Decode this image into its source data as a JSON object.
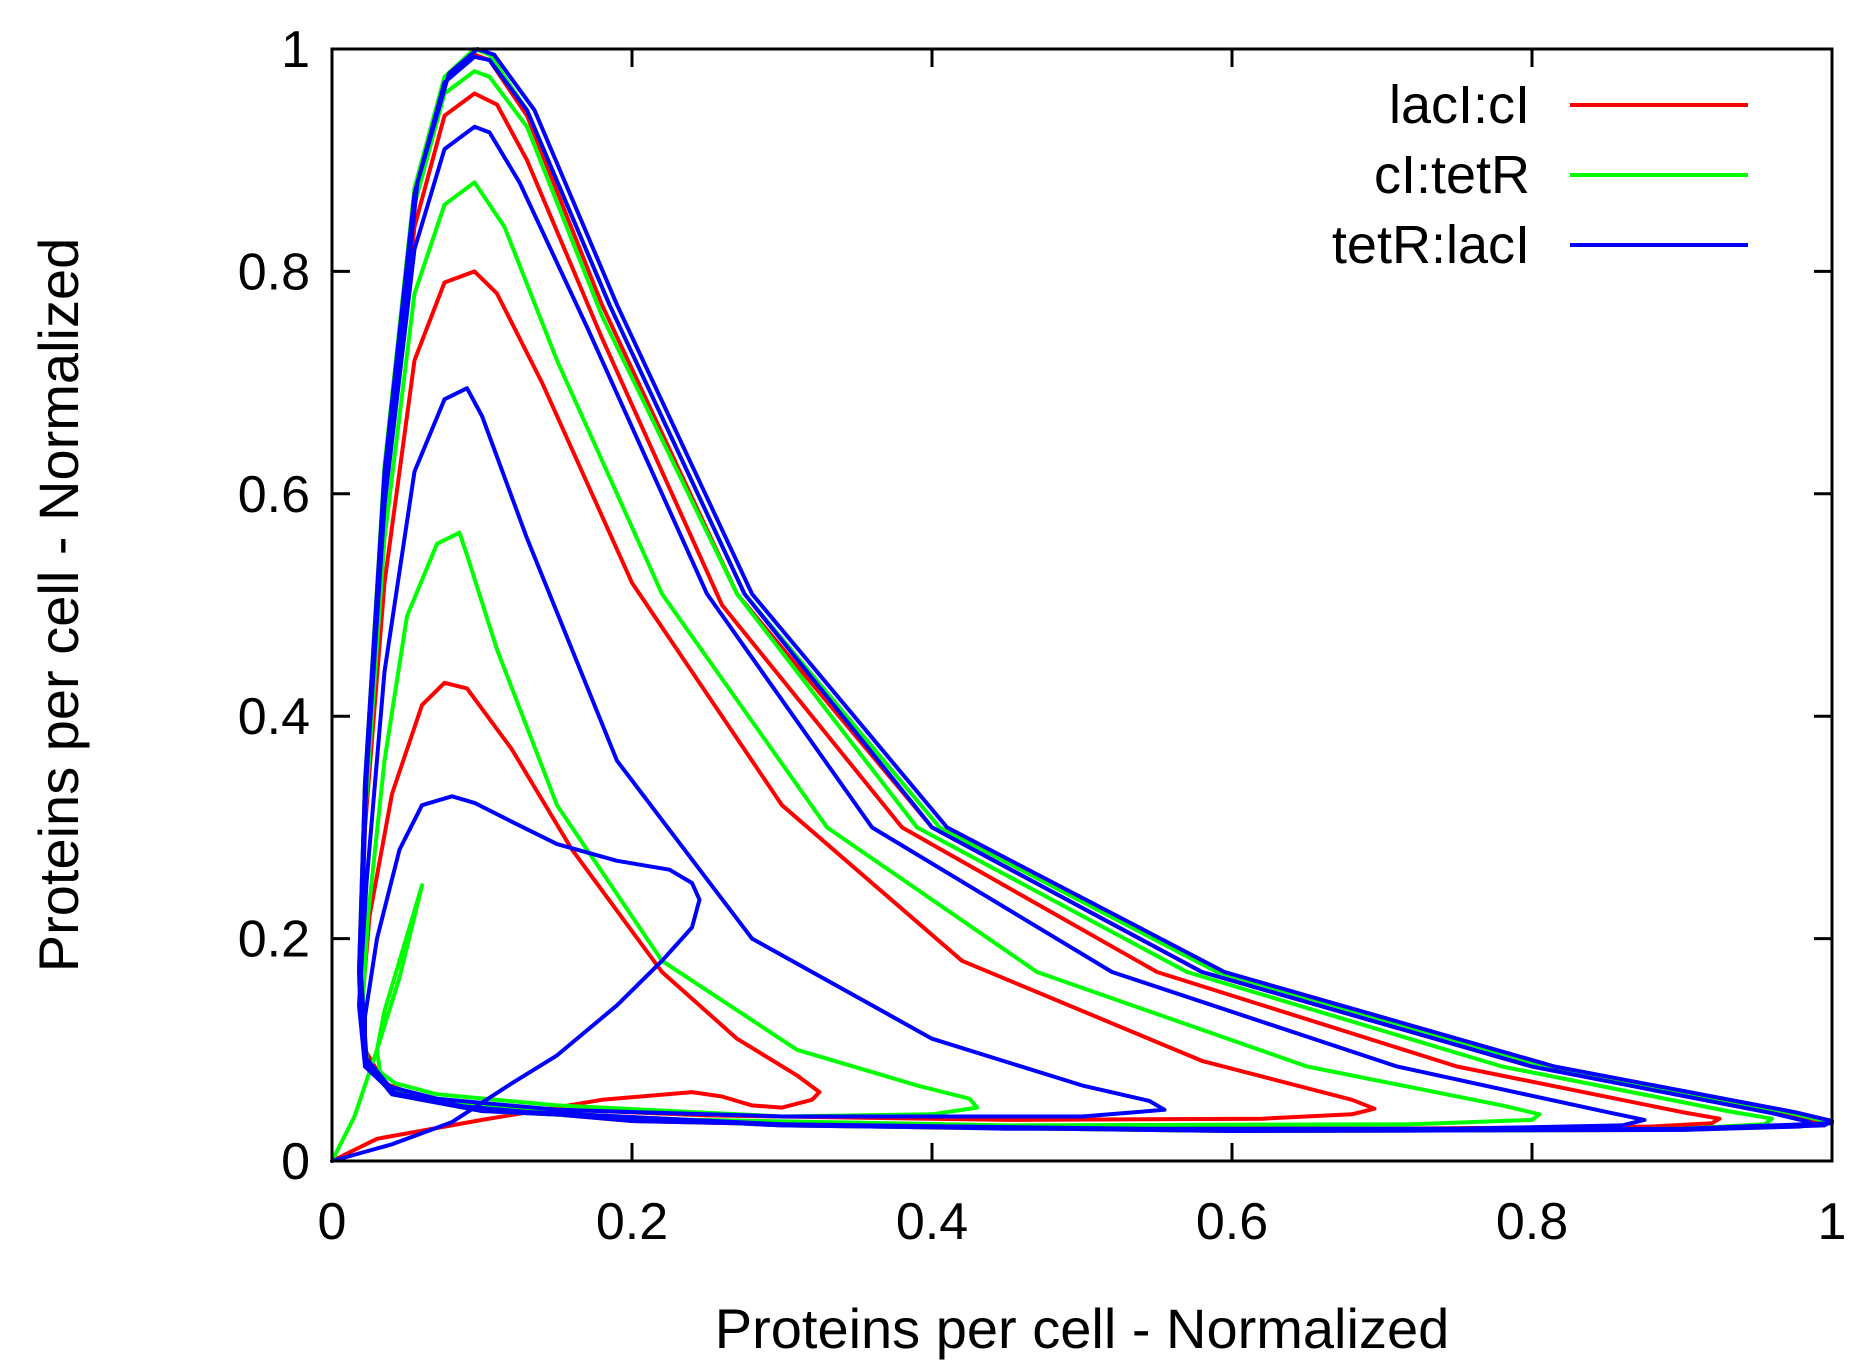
{
  "chart_data": {
    "type": "line",
    "title": "",
    "xlabel": "Proteins per cell - Normalized",
    "ylabel": "Proteins per cell - Normalized",
    "xlim": [
      0,
      1
    ],
    "ylim": [
      0,
      1
    ],
    "xticks": [
      "0",
      "0.2",
      "0.4",
      "0.6",
      "0.8",
      "1"
    ],
    "yticks": [
      "0",
      "0.2",
      "0.4",
      "0.6",
      "0.8",
      "1"
    ],
    "grid": false,
    "legend_position": "top-right",
    "colors": {
      "lacI:cI": "#ff0000",
      "cI:tetR": "#00ff00",
      "tetR:lacI": "#0000ff"
    },
    "series": [
      {
        "name": "lacI:cI",
        "color": "#ff0000",
        "points": [
          [
            0.0,
            0.0
          ],
          [
            0.03,
            0.02
          ],
          [
            0.1,
            0.037
          ],
          [
            0.18,
            0.055
          ],
          [
            0.24,
            0.062
          ],
          [
            0.26,
            0.058
          ],
          [
            0.28,
            0.05
          ],
          [
            0.3,
            0.048
          ],
          [
            0.32,
            0.055
          ],
          [
            0.325,
            0.062
          ],
          [
            0.31,
            0.077
          ],
          [
            0.27,
            0.11
          ],
          [
            0.22,
            0.17
          ],
          [
            0.16,
            0.28
          ],
          [
            0.12,
            0.37
          ],
          [
            0.09,
            0.425
          ],
          [
            0.075,
            0.43
          ],
          [
            0.06,
            0.41
          ],
          [
            0.04,
            0.33
          ],
          [
            0.025,
            0.22
          ],
          [
            0.02,
            0.14
          ],
          [
            0.022,
            0.1
          ],
          [
            0.035,
            0.07
          ],
          [
            0.06,
            0.057
          ],
          [
            0.12,
            0.048
          ],
          [
            0.25,
            0.041
          ],
          [
            0.45,
            0.037
          ],
          [
            0.62,
            0.038
          ],
          [
            0.68,
            0.042
          ],
          [
            0.695,
            0.047
          ],
          [
            0.68,
            0.055
          ],
          [
            0.58,
            0.09
          ],
          [
            0.42,
            0.18
          ],
          [
            0.3,
            0.32
          ],
          [
            0.2,
            0.52
          ],
          [
            0.14,
            0.7
          ],
          [
            0.11,
            0.78
          ],
          [
            0.095,
            0.8
          ],
          [
            0.075,
            0.79
          ],
          [
            0.055,
            0.72
          ],
          [
            0.035,
            0.52
          ],
          [
            0.022,
            0.3
          ],
          [
            0.018,
            0.16
          ],
          [
            0.022,
            0.09
          ],
          [
            0.04,
            0.062
          ],
          [
            0.08,
            0.05
          ],
          [
            0.2,
            0.036
          ],
          [
            0.4,
            0.03
          ],
          [
            0.7,
            0.029
          ],
          [
            0.88,
            0.031
          ],
          [
            0.92,
            0.034
          ],
          [
            0.925,
            0.038
          ],
          [
            0.9,
            0.044
          ],
          [
            0.75,
            0.085
          ],
          [
            0.55,
            0.17
          ],
          [
            0.38,
            0.3
          ],
          [
            0.26,
            0.5
          ],
          [
            0.18,
            0.74
          ],
          [
            0.13,
            0.9
          ],
          [
            0.11,
            0.95
          ],
          [
            0.095,
            0.96
          ],
          [
            0.075,
            0.94
          ],
          [
            0.055,
            0.84
          ],
          [
            0.035,
            0.6
          ],
          [
            0.022,
            0.33
          ],
          [
            0.018,
            0.17
          ],
          [
            0.022,
            0.09
          ],
          [
            0.04,
            0.06
          ],
          [
            0.1,
            0.045
          ],
          [
            0.3,
            0.032
          ],
          [
            0.6,
            0.027
          ],
          [
            0.9,
            0.028
          ],
          [
            0.985,
            0.032
          ],
          [
            0.99,
            0.036
          ],
          [
            0.96,
            0.044
          ],
          [
            0.8,
            0.085
          ],
          [
            0.58,
            0.17
          ],
          [
            0.4,
            0.3
          ],
          [
            0.27,
            0.51
          ],
          [
            0.18,
            0.77
          ],
          [
            0.13,
            0.94
          ],
          [
            0.105,
            0.99
          ],
          [
            0.095,
            0.995
          ],
          [
            0.075,
            0.97
          ],
          [
            0.055,
            0.87
          ],
          [
            0.035,
            0.62
          ],
          [
            0.022,
            0.34
          ],
          [
            0.018,
            0.17
          ],
          [
            0.022,
            0.09
          ],
          [
            0.04,
            0.06
          ],
          [
            0.1,
            0.045
          ],
          [
            0.3,
            0.032
          ],
          [
            0.6,
            0.027
          ],
          [
            0.9,
            0.028
          ]
        ]
      },
      {
        "name": "cI:tetR",
        "color": "#00ff00",
        "points": [
          [
            0.0,
            0.0
          ],
          [
            0.015,
            0.04
          ],
          [
            0.03,
            0.1
          ],
          [
            0.045,
            0.165
          ],
          [
            0.055,
            0.22
          ],
          [
            0.06,
            0.248
          ],
          [
            0.055,
            0.225
          ],
          [
            0.045,
            0.18
          ],
          [
            0.035,
            0.135
          ],
          [
            0.03,
            0.1
          ],
          [
            0.032,
            0.08
          ],
          [
            0.042,
            0.07
          ],
          [
            0.07,
            0.06
          ],
          [
            0.15,
            0.05
          ],
          [
            0.3,
            0.04
          ],
          [
            0.4,
            0.042
          ],
          [
            0.43,
            0.048
          ],
          [
            0.425,
            0.056
          ],
          [
            0.39,
            0.068
          ],
          [
            0.31,
            0.1
          ],
          [
            0.22,
            0.18
          ],
          [
            0.15,
            0.32
          ],
          [
            0.11,
            0.46
          ],
          [
            0.09,
            0.545
          ],
          [
            0.085,
            0.565
          ],
          [
            0.07,
            0.555
          ],
          [
            0.05,
            0.49
          ],
          [
            0.035,
            0.36
          ],
          [
            0.024,
            0.22
          ],
          [
            0.02,
            0.13
          ],
          [
            0.024,
            0.085
          ],
          [
            0.04,
            0.063
          ],
          [
            0.08,
            0.052
          ],
          [
            0.2,
            0.038
          ],
          [
            0.45,
            0.032
          ],
          [
            0.72,
            0.033
          ],
          [
            0.8,
            0.037
          ],
          [
            0.805,
            0.042
          ],
          [
            0.78,
            0.05
          ],
          [
            0.65,
            0.085
          ],
          [
            0.47,
            0.17
          ],
          [
            0.33,
            0.3
          ],
          [
            0.22,
            0.51
          ],
          [
            0.15,
            0.72
          ],
          [
            0.115,
            0.84
          ],
          [
            0.095,
            0.88
          ],
          [
            0.075,
            0.86
          ],
          [
            0.055,
            0.78
          ],
          [
            0.035,
            0.56
          ],
          [
            0.022,
            0.31
          ],
          [
            0.018,
            0.165
          ],
          [
            0.022,
            0.09
          ],
          [
            0.04,
            0.06
          ],
          [
            0.1,
            0.046
          ],
          [
            0.3,
            0.033
          ],
          [
            0.6,
            0.028
          ],
          [
            0.9,
            0.029
          ],
          [
            0.955,
            0.033
          ],
          [
            0.96,
            0.038
          ],
          [
            0.93,
            0.045
          ],
          [
            0.78,
            0.085
          ],
          [
            0.57,
            0.17
          ],
          [
            0.39,
            0.3
          ],
          [
            0.27,
            0.51
          ],
          [
            0.18,
            0.76
          ],
          [
            0.13,
            0.93
          ],
          [
            0.105,
            0.975
          ],
          [
            0.095,
            0.98
          ],
          [
            0.075,
            0.96
          ],
          [
            0.055,
            0.86
          ],
          [
            0.035,
            0.61
          ],
          [
            0.022,
            0.335
          ],
          [
            0.018,
            0.17
          ],
          [
            0.022,
            0.09
          ],
          [
            0.04,
            0.06
          ],
          [
            0.1,
            0.045
          ],
          [
            0.3,
            0.032
          ],
          [
            0.6,
            0.027
          ],
          [
            0.9,
            0.028
          ],
          [
            0.99,
            0.032
          ],
          [
            0.995,
            0.036
          ],
          [
            0.97,
            0.044
          ],
          [
            0.81,
            0.085
          ],
          [
            0.59,
            0.17
          ],
          [
            0.405,
            0.3
          ],
          [
            0.275,
            0.51
          ],
          [
            0.185,
            0.77
          ],
          [
            0.13,
            0.945
          ],
          [
            0.105,
            0.995
          ],
          [
            0.095,
            1.0
          ],
          [
            0.075,
            0.975
          ],
          [
            0.055,
            0.875
          ],
          [
            0.035,
            0.625
          ],
          [
            0.022,
            0.34
          ],
          [
            0.018,
            0.17
          ],
          [
            0.022,
            0.09
          ],
          [
            0.04,
            0.06
          ],
          [
            0.1,
            0.045
          ],
          [
            0.3,
            0.032
          ],
          [
            0.6,
            0.027
          ]
        ]
      },
      {
        "name": "tetR:lacI",
        "color": "#0000ff",
        "points": [
          [
            0.0,
            0.0
          ],
          [
            0.04,
            0.015
          ],
          [
            0.08,
            0.035
          ],
          [
            0.12,
            0.07
          ],
          [
            0.15,
            0.095
          ],
          [
            0.19,
            0.14
          ],
          [
            0.22,
            0.18
          ],
          [
            0.24,
            0.21
          ],
          [
            0.245,
            0.235
          ],
          [
            0.24,
            0.25
          ],
          [
            0.225,
            0.262
          ],
          [
            0.19,
            0.27
          ],
          [
            0.15,
            0.285
          ],
          [
            0.12,
            0.305
          ],
          [
            0.095,
            0.322
          ],
          [
            0.08,
            0.328
          ],
          [
            0.06,
            0.32
          ],
          [
            0.045,
            0.28
          ],
          [
            0.03,
            0.2
          ],
          [
            0.022,
            0.13
          ],
          [
            0.022,
            0.09
          ],
          [
            0.035,
            0.068
          ],
          [
            0.07,
            0.056
          ],
          [
            0.15,
            0.046
          ],
          [
            0.3,
            0.04
          ],
          [
            0.5,
            0.04
          ],
          [
            0.555,
            0.046
          ],
          [
            0.545,
            0.054
          ],
          [
            0.5,
            0.068
          ],
          [
            0.4,
            0.11
          ],
          [
            0.28,
            0.2
          ],
          [
            0.19,
            0.36
          ],
          [
            0.13,
            0.56
          ],
          [
            0.1,
            0.67
          ],
          [
            0.09,
            0.695
          ],
          [
            0.075,
            0.685
          ],
          [
            0.055,
            0.62
          ],
          [
            0.035,
            0.44
          ],
          [
            0.023,
            0.25
          ],
          [
            0.018,
            0.14
          ],
          [
            0.022,
            0.085
          ],
          [
            0.04,
            0.062
          ],
          [
            0.08,
            0.05
          ],
          [
            0.2,
            0.036
          ],
          [
            0.45,
            0.029
          ],
          [
            0.75,
            0.029
          ],
          [
            0.86,
            0.032
          ],
          [
            0.875,
            0.037
          ],
          [
            0.85,
            0.044
          ],
          [
            0.71,
            0.085
          ],
          [
            0.52,
            0.17
          ],
          [
            0.36,
            0.3
          ],
          [
            0.25,
            0.51
          ],
          [
            0.17,
            0.75
          ],
          [
            0.125,
            0.88
          ],
          [
            0.105,
            0.925
          ],
          [
            0.095,
            0.93
          ],
          [
            0.075,
            0.91
          ],
          [
            0.055,
            0.82
          ],
          [
            0.035,
            0.59
          ],
          [
            0.022,
            0.325
          ],
          [
            0.018,
            0.17
          ],
          [
            0.022,
            0.09
          ],
          [
            0.04,
            0.06
          ],
          [
            0.1,
            0.045
          ],
          [
            0.3,
            0.032
          ],
          [
            0.6,
            0.027
          ],
          [
            0.9,
            0.028
          ],
          [
            0.98,
            0.031
          ],
          [
            0.985,
            0.035
          ],
          [
            0.96,
            0.043
          ],
          [
            0.8,
            0.085
          ],
          [
            0.58,
            0.17
          ],
          [
            0.4,
            0.3
          ],
          [
            0.275,
            0.51
          ],
          [
            0.185,
            0.77
          ],
          [
            0.13,
            0.945
          ],
          [
            0.105,
            0.99
          ],
          [
            0.095,
            0.993
          ],
          [
            0.075,
            0.97
          ],
          [
            0.055,
            0.87
          ],
          [
            0.035,
            0.62
          ],
          [
            0.022,
            0.34
          ],
          [
            0.018,
            0.17
          ],
          [
            0.022,
            0.09
          ],
          [
            0.04,
            0.06
          ],
          [
            0.1,
            0.045
          ],
          [
            0.3,
            0.032
          ],
          [
            0.6,
            0.027
          ],
          [
            0.9,
            0.028
          ],
          [
            0.995,
            0.032
          ],
          [
            1.0,
            0.036
          ],
          [
            0.975,
            0.044
          ],
          [
            0.815,
            0.085
          ],
          [
            0.595,
            0.17
          ],
          [
            0.41,
            0.3
          ],
          [
            0.28,
            0.51
          ],
          [
            0.19,
            0.77
          ],
          [
            0.135,
            0.945
          ],
          [
            0.108,
            0.995
          ],
          [
            0.097,
            1.0
          ],
          [
            0.078,
            0.978
          ],
          [
            0.057,
            0.88
          ],
          [
            0.037,
            0.63
          ],
          [
            0.023,
            0.345
          ],
          [
            0.019,
            0.175
          ],
          [
            0.023,
            0.092
          ],
          [
            0.042,
            0.061
          ],
          [
            0.1,
            0.046
          ],
          [
            0.3,
            0.033
          ],
          [
            0.6,
            0.028
          ],
          [
            0.9,
            0.029
          ],
          [
            1.0,
            0.034
          ]
        ]
      }
    ]
  }
}
